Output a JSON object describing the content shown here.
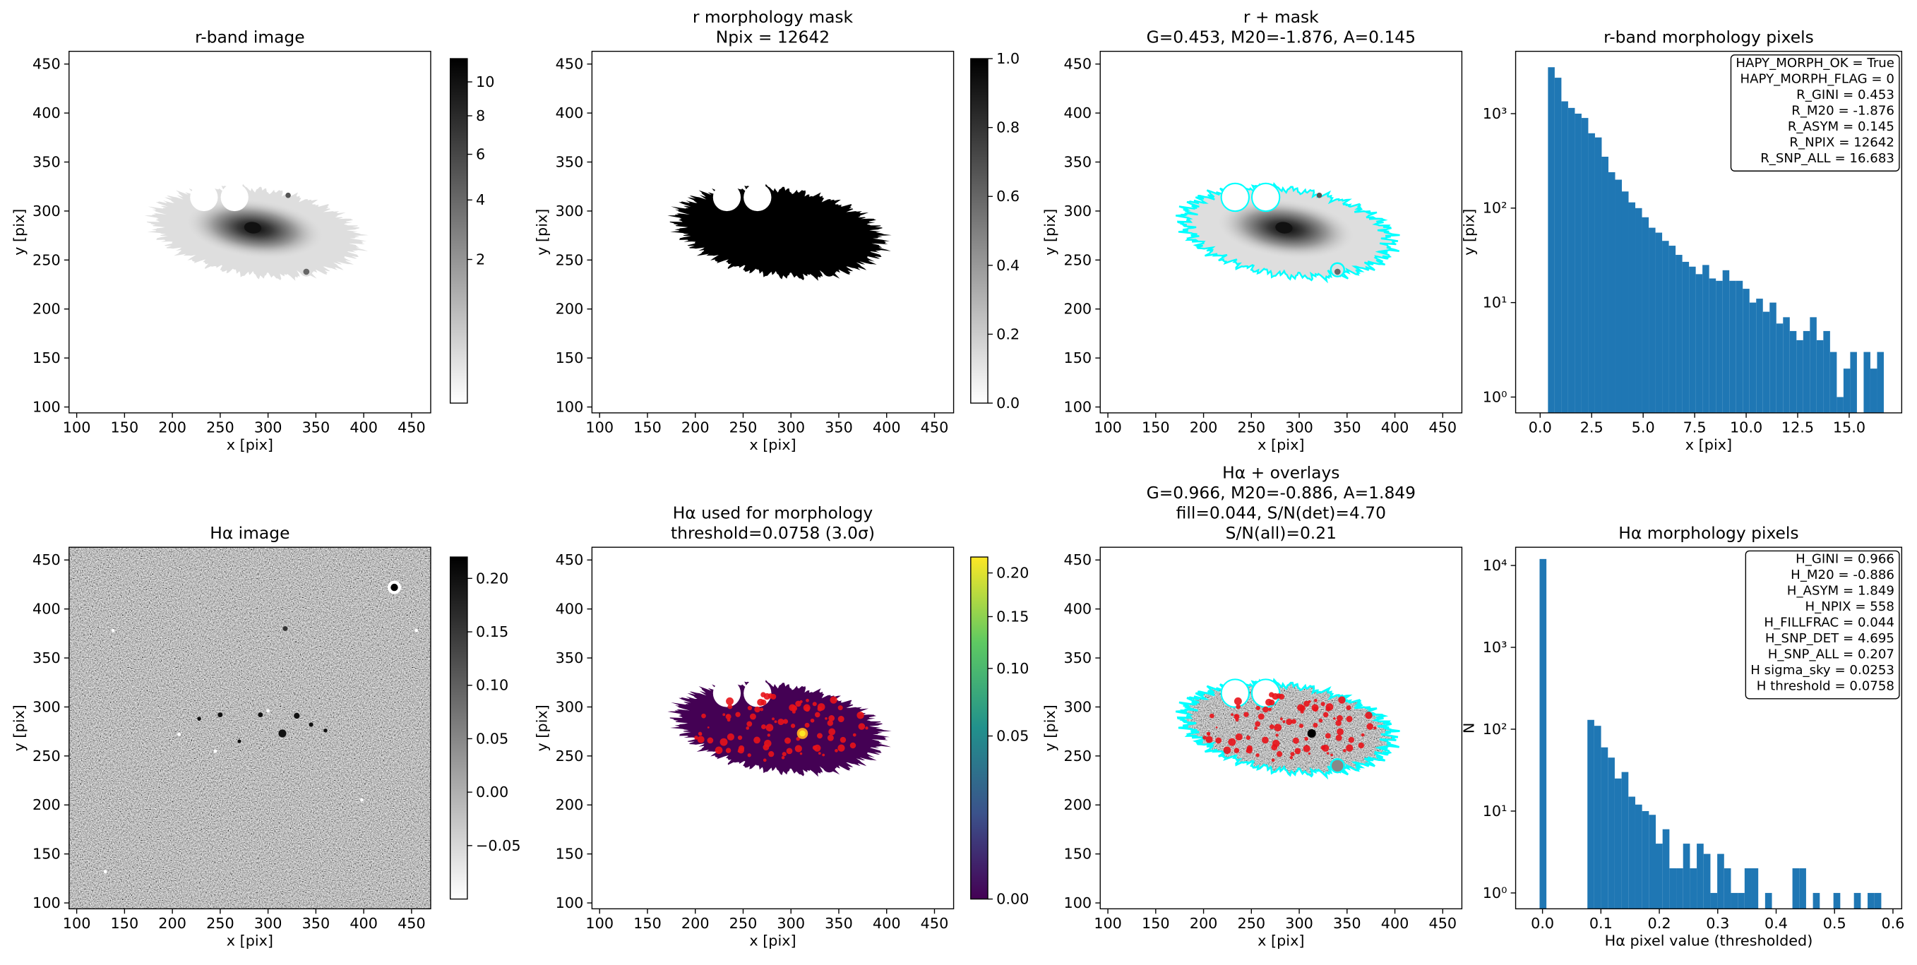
{
  "chart_data": [
    {
      "type": "image",
      "title": [
        "r-band image"
      ],
      "xlabel": "x [pix]",
      "ylabel": "y [pix]",
      "xlim": [
        92,
        470
      ],
      "ylim": [
        94,
        463
      ],
      "xticks": [
        100,
        150,
        200,
        250,
        300,
        350,
        400,
        450
      ],
      "yticks": [
        100,
        150,
        200,
        250,
        300,
        350,
        400,
        450
      ],
      "colormap": "gray_r",
      "colorbar": {
        "lim": [
          0,
          11.5
        ],
        "scale": "sqrt",
        "ticks": [
          2,
          4,
          6,
          8,
          10
        ]
      }
    },
    {
      "type": "image",
      "title": [
        "r morphology mask",
        "Npix = 12642"
      ],
      "xlabel": "x [pix]",
      "ylabel": "y [pix]",
      "xlim": [
        92,
        470
      ],
      "ylim": [
        94,
        463
      ],
      "xticks": [
        100,
        150,
        200,
        250,
        300,
        350,
        400,
        450
      ],
      "yticks": [
        100,
        150,
        200,
        250,
        300,
        350,
        400,
        450
      ],
      "colormap": "gray_r",
      "colorbar": {
        "lim": [
          0,
          1
        ],
        "scale": "linear",
        "ticks": [
          {
            "value": 0,
            "label": "0.0"
          },
          {
            "value": 0.2,
            "label": "0.2"
          },
          {
            "value": 0.4,
            "label": "0.4"
          },
          {
            "value": 0.6,
            "label": "0.6"
          },
          {
            "value": 0.8,
            "label": "0.8"
          },
          {
            "value": 1,
            "label": "1.0"
          }
        ]
      }
    },
    {
      "type": "image",
      "title": [
        "r + mask",
        "G=0.453, M20=-1.876, A=0.145"
      ],
      "xlabel": "x [pix]",
      "ylabel": "y [pix]",
      "xlim": [
        92,
        470
      ],
      "ylim": [
        94,
        463
      ],
      "xticks": [
        100,
        150,
        200,
        250,
        300,
        350,
        400,
        450
      ],
      "yticks": [
        100,
        150,
        200,
        250,
        300,
        350,
        400,
        450
      ],
      "colormap": "gray_r",
      "contour_color": "#00ffff"
    },
    {
      "type": "histogram",
      "title": [
        "r-band morphology pixels"
      ],
      "xlabel": "x [pix]",
      "ylabel": "y [pix]",
      "color": "#1f77b4",
      "log_y": true,
      "xlim": [
        -1.19,
        17.55
      ],
      "ylim": [
        0.68,
        4570
      ],
      "xticks": [
        {
          "value": 0,
          "label": "0.0"
        },
        {
          "value": 2.5,
          "label": "2.5"
        },
        {
          "value": 5,
          "label": "5.0"
        },
        {
          "value": 7.5,
          "label": "7.5"
        },
        {
          "value": 10,
          "label": "10.0"
        },
        {
          "value": 12.5,
          "label": "12.5"
        },
        {
          "value": 15,
          "label": "15.0"
        }
      ],
      "yticks": [
        {
          "value": 1,
          "label": "10⁰"
        },
        {
          "value": 10,
          "label": "10¹"
        },
        {
          "value": 100,
          "label": "10²"
        },
        {
          "value": 1000,
          "label": "10³"
        }
      ],
      "bins": [
        0.38,
        0.706,
        1.032,
        1.358,
        1.684,
        2.01,
        2.336,
        2.662,
        2.988,
        3.314,
        3.64,
        3.966,
        4.292,
        4.618,
        4.944,
        5.27,
        5.596,
        5.922,
        6.248,
        6.574,
        6.9,
        7.226,
        7.552,
        7.878,
        8.204,
        8.53,
        8.856,
        9.182,
        9.508,
        9.834,
        10.16,
        10.486,
        10.812,
        11.138,
        11.464,
        11.79,
        12.116,
        12.442,
        12.768,
        13.094,
        13.42,
        13.746,
        14.072,
        14.398,
        14.724,
        15.05,
        15.376,
        15.702,
        16.028,
        16.354,
        16.68
      ],
      "values": [
        3100,
        2400,
        1350,
        1150,
        1000,
        900,
        620,
        560,
        350,
        240,
        200,
        150,
        115,
        100,
        80,
        62,
        55,
        45,
        40,
        32,
        27,
        24,
        20,
        25,
        18,
        17,
        22,
        17,
        17,
        14,
        10,
        11,
        8,
        10,
        6,
        7,
        5,
        4,
        5,
        7,
        4,
        5,
        3,
        1,
        2,
        3,
        0,
        3,
        2,
        3
      ],
      "annotation": [
        "HAPY_MORPH_OK = True",
        "HAPY_MORPH_FLAG = 0",
        "R_GINI = 0.453",
        "R_M20 = -1.876",
        "R_ASYM = 0.145",
        "R_NPIX = 12642",
        "R_SNP_ALL = 16.683"
      ]
    },
    {
      "type": "image",
      "title": [
        "Hα image"
      ],
      "xlabel": "x [pix]",
      "ylabel": "y [pix]",
      "xlim": [
        92,
        470
      ],
      "ylim": [
        94,
        463
      ],
      "xticks": [
        100,
        150,
        200,
        250,
        300,
        350,
        400,
        450
      ],
      "yticks": [
        100,
        150,
        200,
        250,
        300,
        350,
        400,
        450
      ],
      "colormap": "gray_r",
      "colorbar": {
        "lim": [
          -0.1,
          0.22
        ],
        "scale": "linear",
        "ticks": [
          {
            "value": -0.05,
            "label": "−0.05"
          },
          {
            "value": 0,
            "label": "0.00"
          },
          {
            "value": 0.05,
            "label": "0.05"
          },
          {
            "value": 0.1,
            "label": "0.10"
          },
          {
            "value": 0.15,
            "label": "0.15"
          },
          {
            "value": 0.2,
            "label": "0.20"
          }
        ]
      }
    },
    {
      "type": "image",
      "title": [
        "Hα used for morphology",
        "threshold=0.0758 (3.0σ)"
      ],
      "xlabel": "x [pix]",
      "ylabel": "y [pix]",
      "xlim": [
        92,
        470
      ],
      "ylim": [
        94,
        463
      ],
      "xticks": [
        100,
        150,
        200,
        250,
        300,
        350,
        400,
        450
      ],
      "yticks": [
        100,
        150,
        200,
        250,
        300,
        350,
        400,
        450
      ],
      "colormap": "viridis",
      "colorbar": {
        "lim": [
          0,
          0.22
        ],
        "scale": "sqrt",
        "ticks": [
          {
            "value": 0,
            "label": "0.00"
          },
          {
            "value": 0.05,
            "label": "0.05"
          },
          {
            "value": 0.1,
            "label": "0.10"
          },
          {
            "value": 0.15,
            "label": "0.15"
          },
          {
            "value": 0.2,
            "label": "0.20"
          }
        ]
      }
    },
    {
      "type": "image",
      "title": [
        "Hα + overlays",
        "G=0.966, M20=-0.886, A=1.849",
        "fill=0.044, S/N(det)=4.70",
        "S/N(all)=0.21"
      ],
      "xlabel": "x [pix]",
      "ylabel": "y [pix]",
      "xlim": [
        92,
        470
      ],
      "ylim": [
        94,
        463
      ],
      "xticks": [
        100,
        150,
        200,
        250,
        300,
        350,
        400,
        450
      ],
      "yticks": [
        100,
        150,
        200,
        250,
        300,
        350,
        400,
        450
      ],
      "colormap": "gray_r",
      "contour_color": "#00ffff"
    },
    {
      "type": "histogram",
      "title": [
        "Hα morphology pixels"
      ],
      "xlabel": "Hα pixel value (thresholded)",
      "ylabel": "N",
      "color": "#1f77b4",
      "log_y": true,
      "xlim": [
        -0.046,
        0.615
      ],
      "ylim": [
        0.64,
        16700
      ],
      "xticks": [
        {
          "value": 0,
          "label": "0.0"
        },
        {
          "value": 0.1,
          "label": "0.1"
        },
        {
          "value": 0.2,
          "label": "0.2"
        },
        {
          "value": 0.3,
          "label": "0.3"
        },
        {
          "value": 0.4,
          "label": "0.4"
        },
        {
          "value": 0.5,
          "label": "0.5"
        },
        {
          "value": 0.6,
          "label": "0.6"
        }
      ],
      "yticks": [
        {
          "value": 1,
          "label": "10⁰"
        },
        {
          "value": 10,
          "label": "10¹"
        },
        {
          "value": 100,
          "label": "10²"
        },
        {
          "value": 1000,
          "label": "10³"
        },
        {
          "value": 10000,
          "label": "10⁴"
        }
      ],
      "bins": [
        -0.005,
        0.0067,
        0.0184,
        0.0301,
        0.0418,
        0.0535,
        0.0652,
        0.0769,
        0.0886,
        0.1003,
        0.112,
        0.1237,
        0.1354,
        0.1471,
        0.1588,
        0.1705,
        0.1822,
        0.1939,
        0.2056,
        0.2173,
        0.229,
        0.2407,
        0.2524,
        0.2641,
        0.2758,
        0.2875,
        0.2992,
        0.3109,
        0.3226,
        0.3343,
        0.346,
        0.3577,
        0.3694,
        0.3811,
        0.3928,
        0.4045,
        0.4162,
        0.4279,
        0.4396,
        0.4513,
        0.463,
        0.4747,
        0.4864,
        0.4981,
        0.5098,
        0.5215,
        0.5332,
        0.5449,
        0.5566,
        0.5683,
        0.58
      ],
      "values": [
        12000,
        0,
        0,
        0,
        0,
        0,
        0,
        130,
        110,
        60,
        45,
        25,
        30,
        15,
        12,
        10,
        9,
        4,
        6,
        2,
        2,
        4,
        2,
        4,
        3,
        1,
        3,
        2,
        1,
        1,
        2,
        2,
        0,
        1,
        0,
        0,
        0,
        2,
        2,
        0,
        1,
        0,
        0,
        1,
        0,
        0,
        1,
        0,
        1,
        1
      ],
      "annotation": [
        "H_GINI = 0.966",
        "H_M20 = -0.886",
        "H_ASYM = 1.849",
        "H_NPIX = 558",
        "H_FILLFRAC = 0.044",
        "H_SNP_DET = 4.695",
        "H_SNP_ALL = 0.207",
        "H sigma_sky = 0.0253",
        "H threshold = 0.0758"
      ]
    }
  ]
}
